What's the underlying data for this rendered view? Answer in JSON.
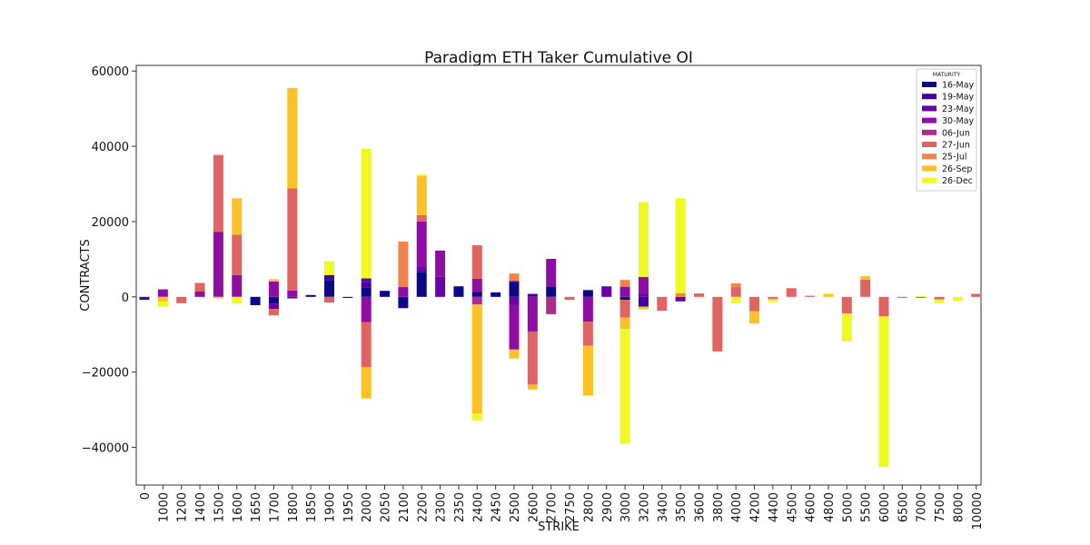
{
  "chart_data": {
    "type": "bar",
    "stacked": true,
    "title": "Paradigm ETH Taker Cumulative OI",
    "xlabel": "STRIKE",
    "ylabel": "CONTRACTS",
    "ylim": [
      -50000,
      61500
    ],
    "yticks": [
      -40000,
      -20000,
      0,
      20000,
      40000,
      60000
    ],
    "ytick_labels": [
      "−40000",
      "−20000",
      "0",
      "20000",
      "40000",
      "60000"
    ],
    "grid": false,
    "legend": {
      "title": "MATURITY",
      "position": "top-right"
    },
    "categories": [
      "0",
      "1000",
      "1200",
      "1400",
      "1500",
      "1600",
      "1650",
      "1700",
      "1800",
      "1850",
      "1900",
      "1950",
      "2000",
      "2050",
      "2100",
      "2200",
      "2300",
      "2350",
      "2400",
      "2450",
      "2500",
      "2600",
      "2700",
      "2750",
      "2800",
      "2900",
      "3000",
      "3200",
      "3400",
      "3500",
      "3600",
      "3800",
      "4000",
      "4200",
      "4400",
      "4500",
      "4600",
      "4800",
      "5000",
      "5500",
      "6000",
      "6500",
      "7000",
      "7500",
      "8000",
      "10000"
    ],
    "series": [
      {
        "name": "16-May",
        "color": "#0d0887",
        "values": [
          0,
          0,
          0,
          0,
          0,
          0,
          -2200,
          -1800,
          0,
          500,
          4500,
          0,
          2400,
          1600,
          -3000,
          6500,
          0,
          2800,
          1300,
          1200,
          3700,
          0,
          2800,
          0,
          1800,
          0,
          -800,
          0,
          0,
          0,
          0,
          0,
          0,
          0,
          0,
          0,
          0,
          0,
          0,
          0,
          0,
          0,
          0,
          0,
          0,
          0
        ]
      },
      {
        "name": "19-May",
        "color": "#41049d",
        "values": [
          -800,
          0,
          0,
          0,
          0,
          0,
          0,
          0,
          -400,
          0,
          1300,
          -300,
          1600,
          0,
          0,
          600,
          0,
          0,
          0,
          0,
          500,
          800,
          0,
          0,
          0,
          0,
          0,
          -2600,
          0,
          0,
          0,
          0,
          0,
          0,
          0,
          0,
          0,
          0,
          0,
          0,
          0,
          0,
          0,
          0,
          0,
          0
        ]
      },
      {
        "name": "23-May",
        "color": "#6a00a8",
        "values": [
          0,
          0,
          0,
          0,
          0,
          0,
          0,
          -1400,
          0,
          0,
          0,
          0,
          900,
          0,
          0,
          700,
          5300,
          0,
          0,
          0,
          -2200,
          0,
          0,
          0,
          0,
          2800,
          0,
          900,
          0,
          -1200,
          0,
          0,
          0,
          0,
          0,
          0,
          0,
          0,
          0,
          0,
          0,
          0,
          0,
          0,
          0,
          0
        ]
      },
      {
        "name": "30-May",
        "color": "#8f0da4",
        "values": [
          0,
          2000,
          0,
          1400,
          17300,
          5800,
          0,
          4100,
          1700,
          0,
          0,
          0,
          -6700,
          0,
          2600,
          12200,
          7000,
          0,
          3500,
          0,
          -11800,
          -9200,
          7300,
          0,
          -6600,
          0,
          2700,
          4400,
          0,
          0,
          0,
          0,
          0,
          0,
          0,
          0,
          0,
          0,
          0,
          0,
          0,
          0,
          0,
          0,
          0,
          0
        ]
      },
      {
        "name": "06-Jun",
        "color": "#b12a90",
        "values": [
          0,
          0,
          0,
          0,
          0,
          0,
          0,
          0,
          0,
          0,
          0,
          0,
          0,
          0,
          0,
          0,
          0,
          0,
          -2000,
          0,
          0,
          0,
          -4600,
          0,
          0,
          0,
          0,
          0,
          0,
          0,
          0,
          0,
          0,
          0,
          0,
          0,
          0,
          0,
          0,
          0,
          0,
          0,
          0,
          0,
          0,
          0
        ]
      },
      {
        "name": "27-Jun",
        "color": "#e16462",
        "values": [
          0,
          0,
          -1700,
          2300,
          20400,
          10700,
          0,
          -1700,
          27100,
          0,
          -1500,
          0,
          -12000,
          0,
          0,
          1700,
          0,
          0,
          8900,
          0,
          0,
          -14100,
          0,
          -800,
          -6400,
          0,
          -4700,
          0,
          -3700,
          0,
          900,
          -14500,
          2600,
          -3800,
          -500,
          2300,
          300,
          0,
          -4400,
          4600,
          -5200,
          -300,
          -300,
          -700,
          0,
          800
        ]
      },
      {
        "name": "25-Jul",
        "color": "#f2844b",
        "values": [
          0,
          0,
          0,
          0,
          0,
          0,
          0,
          0,
          0,
          0,
          0,
          0,
          0,
          0,
          12100,
          0,
          0,
          0,
          0,
          0,
          2000,
          0,
          0,
          0,
          0,
          0,
          1800,
          0,
          0,
          1000,
          0,
          0,
          1000,
          0,
          0,
          0,
          0,
          0,
          0,
          0,
          0,
          0,
          0,
          0,
          0,
          0
        ]
      },
      {
        "name": "26-Sep",
        "color": "#fcc127",
        "values": [
          0,
          -1300,
          0,
          0,
          -400,
          9700,
          0,
          600,
          26700,
          0,
          0,
          0,
          -8300,
          0,
          0,
          10400,
          0,
          0,
          -29000,
          0,
          -2400,
          -1300,
          0,
          0,
          -13200,
          0,
          -3000,
          -700,
          0,
          0,
          0,
          0,
          0,
          -3300,
          -300,
          0,
          0,
          700,
          0,
          900,
          0,
          0,
          0,
          0,
          0,
          0
        ]
      },
      {
        "name": "26-Dec",
        "color": "#f0f921",
        "values": [
          0,
          -1400,
          0,
          0,
          0,
          -1800,
          0,
          0,
          0,
          0,
          3700,
          0,
          34400,
          0,
          0,
          400,
          0,
          0,
          -1800,
          0,
          0,
          0,
          0,
          0,
          0,
          0,
          -30500,
          19900,
          0,
          25200,
          0,
          0,
          -1700,
          0,
          -600,
          0,
          0,
          300,
          -7400,
          0,
          -40000,
          0,
          200,
          -900,
          -1000,
          0
        ]
      }
    ]
  }
}
